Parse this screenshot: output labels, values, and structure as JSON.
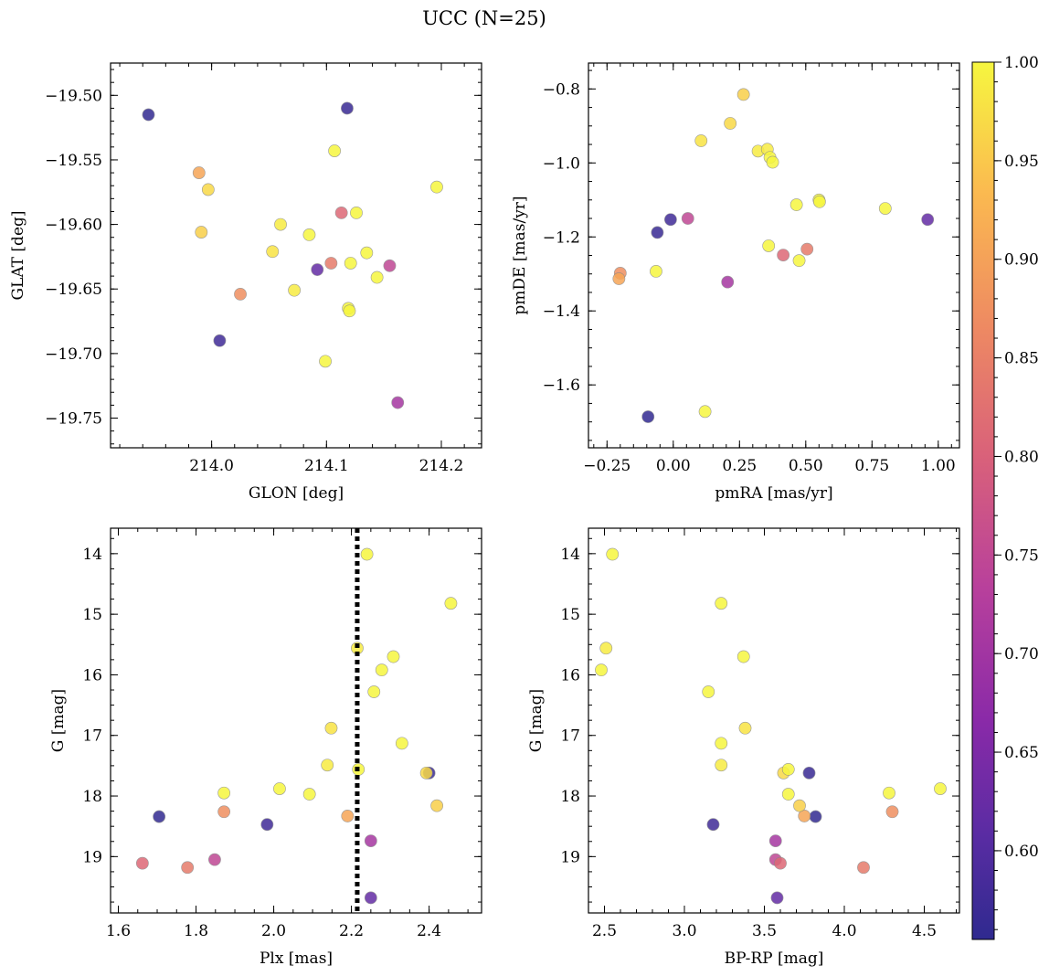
{
  "title": "UCC (N=25)",
  "colors": {
    "colormap": [
      "#0d0887",
      "#47039f",
      "#7301a8",
      "#9c179e",
      "#bd3786",
      "#d8576b",
      "#ed7953",
      "#fa9e3b",
      "#fdc926",
      "#f0f921"
    ],
    "text": "#000000",
    "cluster_line": "#000000"
  },
  "colorbar": {
    "range": [
      0.555,
      1.0
    ],
    "ticks": [
      0.6,
      0.65,
      0.7,
      0.75,
      0.8,
      0.85,
      0.9,
      0.95,
      1.0
    ],
    "tick_labels": [
      "0.60",
      "0.65",
      "0.70",
      "0.75",
      "0.80",
      "0.85",
      "0.90",
      "0.95",
      "1.00"
    ]
  },
  "stars": [
    {
      "glon": 213.945,
      "glat": -19.515,
      "pmra": -0.095,
      "pmde": -1.686,
      "plx": 1.705,
      "g": 18.34,
      "bprp": 3.82,
      "prob": 0.56
    },
    {
      "glon": 214.118,
      "glat": -19.51,
      "pmra": -0.06,
      "pmde": -1.188,
      "plx": 2.4,
      "g": 17.62,
      "bprp": 3.78,
      "prob": 0.57
    },
    {
      "glon": 214.007,
      "glat": -19.69,
      "pmra": -0.01,
      "pmde": -1.153,
      "plx": 1.983,
      "g": 18.47,
      "bprp": 3.18,
      "prob": 0.58
    },
    {
      "glon": 214.092,
      "glat": -19.635,
      "pmra": 0.96,
      "pmde": -1.153,
      "plx": 2.25,
      "g": 19.68,
      "bprp": 3.58,
      "prob": 0.63
    },
    {
      "glon": 214.162,
      "glat": -19.738,
      "pmra": 0.205,
      "pmde": -1.322,
      "plx": 2.25,
      "g": 18.74,
      "bprp": 3.57,
      "prob": 0.72
    },
    {
      "glon": 214.155,
      "glat": -19.632,
      "pmra": 0.055,
      "pmde": -1.15,
      "plx": 1.848,
      "g": 19.05,
      "bprp": 3.57,
      "prob": 0.76
    },
    {
      "glon": 214.113,
      "glat": -19.591,
      "pmra": 0.415,
      "pmde": -1.249,
      "plx": 1.662,
      "g": 19.11,
      "bprp": 3.6,
      "prob": 0.82
    },
    {
      "glon": 214.104,
      "glat": -19.63,
      "pmra": 0.505,
      "pmde": -1.233,
      "plx": 1.778,
      "g": 19.18,
      "bprp": 4.12,
      "prob": 0.85
    },
    {
      "glon": 214.025,
      "glat": -19.654,
      "pmra": -0.2,
      "pmde": -1.298,
      "plx": 1.872,
      "g": 18.26,
      "bprp": 4.3,
      "prob": 0.88
    },
    {
      "glon": 213.989,
      "glat": -19.56,
      "pmra": -0.205,
      "pmde": -1.313,
      "plx": 2.19,
      "g": 18.33,
      "bprp": 3.75,
      "prob": 0.91
    },
    {
      "glon": 213.991,
      "glat": -19.606,
      "pmra": 0.265,
      "pmde": -0.815,
      "plx": 2.42,
      "g": 18.16,
      "bprp": 3.72,
      "prob": 0.96
    },
    {
      "glon": 213.997,
      "glat": -19.573,
      "pmra": 0.215,
      "pmde": -0.893,
      "plx": 2.393,
      "g": 17.62,
      "bprp": 3.62,
      "prob": 0.97
    },
    {
      "glon": 214.053,
      "glat": -19.621,
      "pmra": 0.105,
      "pmde": -0.94,
      "plx": 2.148,
      "g": 16.88,
      "bprp": 3.38,
      "prob": 0.98
    },
    {
      "glon": 214.06,
      "glat": -19.6,
      "pmra": 0.32,
      "pmde": -0.968,
      "plx": 2.138,
      "g": 17.49,
      "bprp": 3.23,
      "prob": 0.99
    },
    {
      "glon": 214.072,
      "glat": -19.651,
      "pmra": 0.355,
      "pmde": -0.963,
      "plx": 2.215,
      "g": 15.56,
      "bprp": 2.51,
      "prob": 0.99
    },
    {
      "glon": 214.085,
      "glat": -19.608,
      "pmra": 0.365,
      "pmde": -0.985,
      "plx": 2.278,
      "g": 15.92,
      "bprp": 2.48,
      "prob": 1.0
    },
    {
      "glon": 214.099,
      "glat": -19.706,
      "pmra": 0.375,
      "pmde": -0.998,
      "plx": 2.308,
      "g": 15.7,
      "bprp": 3.37,
      "prob": 1.0
    },
    {
      "glon": 214.107,
      "glat": -19.543,
      "pmra": 0.465,
      "pmde": -1.113,
      "plx": 2.258,
      "g": 16.28,
      "bprp": 3.15,
      "prob": 1.0
    },
    {
      "glon": 214.119,
      "glat": -19.665,
      "pmra": 0.55,
      "pmde": -1.1,
      "plx": 2.33,
      "g": 17.13,
      "bprp": 3.23,
      "prob": 1.0
    },
    {
      "glon": 214.12,
      "glat": -19.667,
      "pmra": 0.552,
      "pmde": -1.105,
      "plx": 2.24,
      "g": 14.01,
      "bprp": 2.55,
      "prob": 1.0
    },
    {
      "glon": 214.121,
      "glat": -19.63,
      "pmra": 0.8,
      "pmde": -1.123,
      "plx": 2.456,
      "g": 14.82,
      "bprp": 3.23,
      "prob": 1.0
    },
    {
      "glon": 214.126,
      "glat": -19.591,
      "pmra": 0.36,
      "pmde": -1.224,
      "plx": 2.218,
      "g": 17.56,
      "bprp": 3.65,
      "prob": 1.0
    },
    {
      "glon": 214.135,
      "glat": -19.622,
      "pmra": 0.475,
      "pmde": -1.264,
      "plx": 2.092,
      "g": 17.97,
      "bprp": 3.65,
      "prob": 1.0
    },
    {
      "glon": 214.144,
      "glat": -19.641,
      "pmra": -0.065,
      "pmde": -1.293,
      "plx": 1.872,
      "g": 17.95,
      "bprp": 4.28,
      "prob": 1.0
    },
    {
      "glon": 214.196,
      "glat": -19.571,
      "pmra": 0.12,
      "pmde": -1.672,
      "plx": 2.015,
      "g": 17.88,
      "bprp": 4.6,
      "prob": 1.0
    }
  ],
  "panels": [
    {
      "x": "glon",
      "y": "glat",
      "xlabel": "GLON [deg]",
      "ylabel": "GLAT [deg]",
      "xlim": [
        213.912,
        214.235
      ],
      "ylim": [
        -19.773,
        -19.475
      ],
      "y_inverted": false,
      "xticks": [
        214.0,
        214.1,
        214.2
      ],
      "xtick_labels": [
        "214.0",
        "214.1",
        "214.2"
      ],
      "yticks": [
        -19.75,
        -19.7,
        -19.65,
        -19.6,
        -19.55,
        -19.5
      ],
      "ytick_labels": [
        "−19.75",
        "−19.70",
        "−19.65",
        "−19.60",
        "−19.55",
        "−19.50"
      ],
      "xminor": 0.02,
      "yminor": 0.01
    },
    {
      "x": "pmra",
      "y": "pmde",
      "xlabel": "pmRA [mas/yr]",
      "ylabel": "pmDE [mas/yr]",
      "xlim": [
        -0.32,
        1.08
      ],
      "ylim": [
        -1.77,
        -0.73
      ],
      "y_inverted": false,
      "xticks": [
        -0.25,
        0.0,
        0.25,
        0.5,
        0.75,
        1.0
      ],
      "xtick_labels": [
        "−0.25",
        "0.00",
        "0.25",
        "0.50",
        "0.75",
        "1.00"
      ],
      "yticks": [
        -1.6,
        -1.4,
        -1.2,
        -1.0,
        -0.8
      ],
      "ytick_labels": [
        "−1.6",
        "−1.4",
        "−1.2",
        "−1.0",
        "−0.8"
      ],
      "xminor": 0.05,
      "yminor": 0.05
    },
    {
      "x": "plx",
      "y": "g",
      "xlabel": "Plx [mas]",
      "ylabel": "G [mag]",
      "xlim": [
        1.58,
        2.535
      ],
      "ylim": [
        13.58,
        19.93
      ],
      "y_inverted": true,
      "xticks": [
        1.6,
        1.8,
        2.0,
        2.2,
        2.4
      ],
      "xtick_labels": [
        "1.6",
        "1.8",
        "2.0",
        "2.2",
        "2.4"
      ],
      "yticks": [
        14,
        15,
        16,
        17,
        18,
        19
      ],
      "ytick_labels": [
        "14",
        "15",
        "16",
        "17",
        "18",
        "19"
      ],
      "xminor": 0.05,
      "yminor": 0.25,
      "vline": 2.215
    },
    {
      "x": "bprp",
      "y": "g",
      "xlabel": "BP-RP [mag]",
      "ylabel": "G [mag]",
      "xlim": [
        2.4,
        4.72
      ],
      "ylim": [
        13.58,
        19.93
      ],
      "y_inverted": true,
      "xticks": [
        2.5,
        3.0,
        3.5,
        4.0,
        4.5
      ],
      "xtick_labels": [
        "2.5",
        "3.0",
        "3.5",
        "4.0",
        "4.5"
      ],
      "yticks": [
        14,
        15,
        16,
        17,
        18,
        19
      ],
      "ytick_labels": [
        "14",
        "15",
        "16",
        "17",
        "18",
        "19"
      ],
      "xminor": 0.1,
      "yminor": 0.25
    }
  ],
  "chart_data": [
    {
      "type": "scatter",
      "xlabel": "GLON [deg]",
      "ylabel": "GLAT [deg]",
      "x_field": "glon",
      "y_field": "glat",
      "color_field": "prob"
    },
    {
      "type": "scatter",
      "xlabel": "pmRA [mas/yr]",
      "ylabel": "pmDE [mas/yr]",
      "x_field": "pmra",
      "y_field": "pmde",
      "color_field": "prob"
    },
    {
      "type": "scatter",
      "xlabel": "Plx [mas]",
      "ylabel": "G [mag]",
      "x_field": "plx",
      "y_field": "g",
      "color_field": "prob",
      "annotation": "dotted vertical line at Plx = 2.215"
    },
    {
      "type": "scatter",
      "xlabel": "BP-RP [mag]",
      "ylabel": "G [mag]",
      "x_field": "bprp",
      "y_field": "g",
      "color_field": "prob"
    }
  ]
}
